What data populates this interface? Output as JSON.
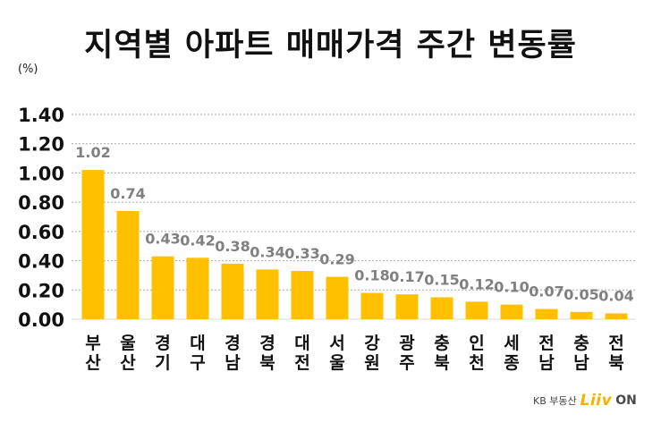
{
  "chart_data": {
    "type": "bar",
    "title": "지역별 아파트 매매가격 주간 변동률",
    "unit": "(%)",
    "categories": [
      "부산",
      "울산",
      "경기",
      "대구",
      "경남",
      "경북",
      "대전",
      "서울",
      "강원",
      "광주",
      "충북",
      "인천",
      "세종",
      "전남",
      "충남",
      "전북"
    ],
    "category_lines": [
      [
        "부",
        "산"
      ],
      [
        "울",
        "산"
      ],
      [
        "경",
        "기"
      ],
      [
        "대",
        "구"
      ],
      [
        "경",
        "남"
      ],
      [
        "경",
        "북"
      ],
      [
        "대",
        "전"
      ],
      [
        "서",
        "울"
      ],
      [
        "강",
        "원"
      ],
      [
        "광",
        "주"
      ],
      [
        "충",
        "북"
      ],
      [
        "인",
        "천"
      ],
      [
        "세",
        "종"
      ],
      [
        "전",
        "남"
      ],
      [
        "충",
        "남"
      ],
      [
        "전",
        "북"
      ]
    ],
    "values": [
      1.02,
      0.74,
      0.43,
      0.42,
      0.38,
      0.34,
      0.33,
      0.29,
      0.18,
      0.17,
      0.15,
      0.12,
      0.1,
      0.07,
      0.05,
      0.04
    ],
    "value_labels": [
      "1.02",
      "0.74",
      "0.43",
      "0.42",
      "0.38",
      "0.34",
      "0.33",
      "0.29",
      "0.18",
      "0.17",
      "0.15",
      "0.12",
      "0.10",
      "0.07",
      "0.05",
      "0.04"
    ],
    "yticks": [
      "0.00",
      "0.20",
      "0.40",
      "0.60",
      "0.80",
      "1.00",
      "1.20",
      "1.40"
    ],
    "ylim": [
      0,
      1.4
    ],
    "grid": true,
    "bar_color": "#ffc000",
    "grid_color": "#a6a6a6"
  },
  "logo": {
    "kb_text": "KB 부동산",
    "brand_text": "Liiv",
    "on_text": "ON"
  }
}
